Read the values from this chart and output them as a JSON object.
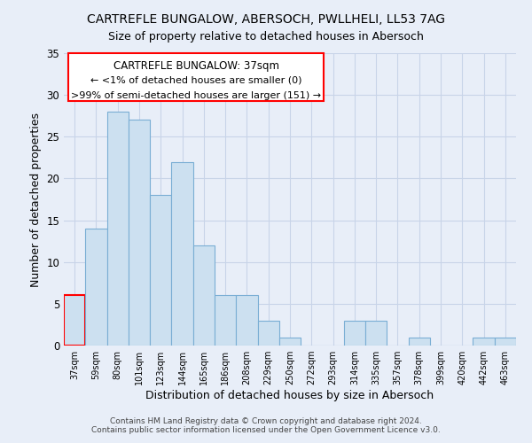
{
  "title": "CARTREFLE BUNGALOW, ABERSOCH, PWLLHELI, LL53 7AG",
  "subtitle": "Size of property relative to detached houses in Abersoch",
  "xlabel": "Distribution of detached houses by size in Abersoch",
  "ylabel": "Number of detached properties",
  "bar_labels": [
    "37sqm",
    "59sqm",
    "80sqm",
    "101sqm",
    "123sqm",
    "144sqm",
    "165sqm",
    "186sqm",
    "208sqm",
    "229sqm",
    "250sqm",
    "272sqm",
    "293sqm",
    "314sqm",
    "335sqm",
    "357sqm",
    "378sqm",
    "399sqm",
    "420sqm",
    "442sqm",
    "463sqm"
  ],
  "bar_values": [
    6,
    14,
    28,
    27,
    18,
    22,
    12,
    6,
    6,
    3,
    1,
    0,
    0,
    3,
    3,
    0,
    1,
    0,
    0,
    1,
    1
  ],
  "bar_color": "#cce0f0",
  "bar_edge_color": "#7aaed4",
  "highlight_index": 0,
  "highlight_bar_edge_color": "red",
  "ylim": [
    0,
    35
  ],
  "yticks": [
    0,
    5,
    10,
    15,
    20,
    25,
    30,
    35
  ],
  "annotation_box_text_line1": "CARTREFLE BUNGALOW: 37sqm",
  "annotation_box_text_line2": "← <1% of detached houses are smaller (0)",
  "annotation_box_text_line3": ">99% of semi-detached houses are larger (151) →",
  "footer_line1": "Contains HM Land Registry data © Crown copyright and database right 2024.",
  "footer_line2": "Contains public sector information licensed under the Open Government Licence v3.0.",
  "background_color": "#e8eef8",
  "grid_color": "#c8d4e8"
}
